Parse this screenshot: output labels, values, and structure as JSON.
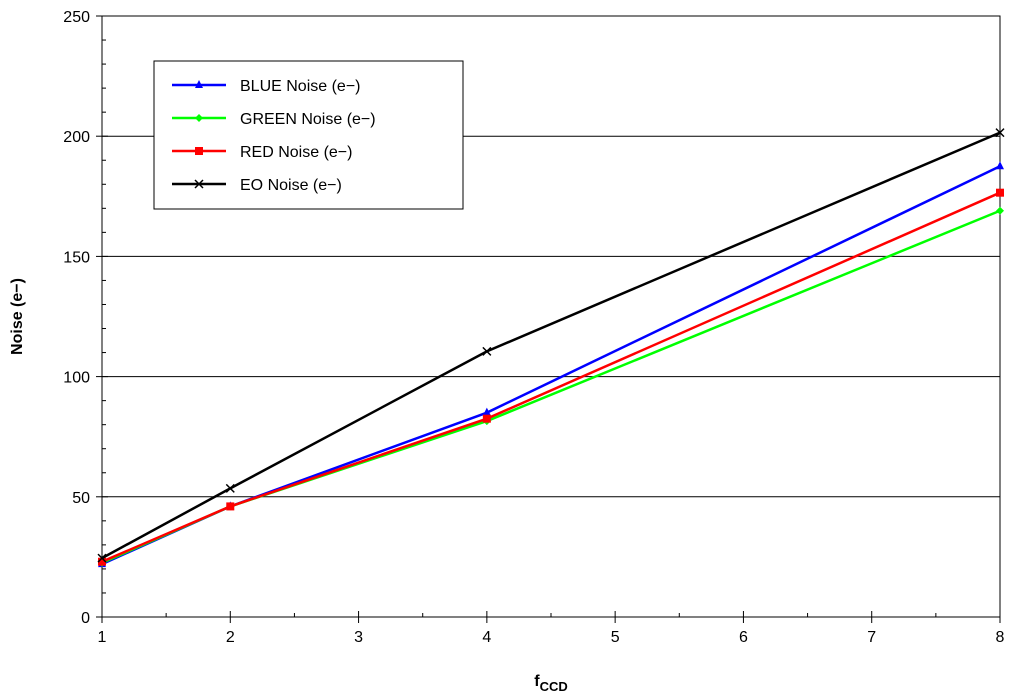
{
  "chart_data": {
    "type": "line",
    "xlabel_main": "f",
    "xlabel_sub": "CCD",
    "ylabel": "Noise (e−)",
    "xlim": [
      1,
      8
    ],
    "ylim": [
      0,
      250
    ],
    "x_ticks": [
      "1",
      "2",
      "3",
      "4",
      "5",
      "6",
      "7",
      "8"
    ],
    "y_ticks": [
      "0",
      "50",
      "100",
      "150",
      "200",
      "250"
    ],
    "grid": "horizontal major",
    "legend_position": "top-left",
    "series": [
      {
        "name": "BLUE Noise (e−)",
        "color": "#0000ff",
        "marker": "triangle",
        "x": [
          1,
          2,
          4,
          8
        ],
        "values": [
          22,
          46,
          85,
          187.5
        ]
      },
      {
        "name": "GREEN Noise (e−)",
        "color": "#00ff00",
        "marker": "diamond",
        "x": [
          1,
          2,
          4,
          8
        ],
        "values": [
          22.5,
          46,
          81.5,
          169
        ]
      },
      {
        "name": "RED Noise (e−)",
        "color": "#ff0000",
        "marker": "square",
        "x": [
          1,
          2,
          4,
          8
        ],
        "values": [
          23,
          46,
          82.5,
          176.5
        ]
      },
      {
        "name": "EO Noise (e−)",
        "color": "#000000",
        "marker": "x",
        "x": [
          1,
          2,
          4,
          8
        ],
        "values": [
          24.5,
          53.5,
          110.5,
          201.5
        ]
      }
    ]
  }
}
